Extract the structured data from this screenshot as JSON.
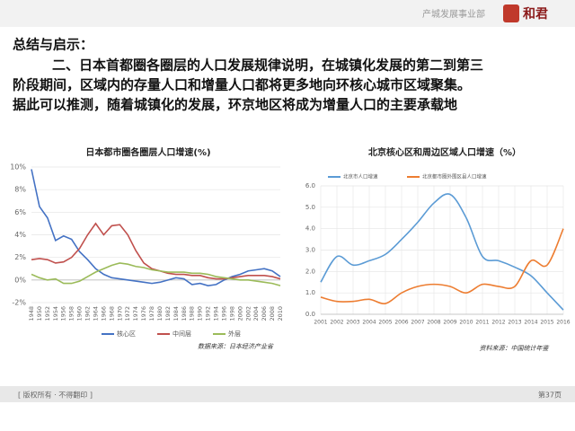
{
  "header": {
    "department": "产城发展事业部",
    "logo": "和君"
  },
  "body": {
    "heading": "总结与启示：",
    "lines": [
      "二、日本首都圈各圈层的人口发展规律说明，在城镇化发展的第二到第三",
      "阶段期间，区域内的存量人口和增量人口都将更多地向环核心城市区域聚集。",
      "据此可以推测，随着城镇化的发展，环京地区将成为增量人口的主要承载地"
    ]
  },
  "footer": {
    "left": "[ 版权所有 · 不得翻印 ]",
    "right": "第37页"
  },
  "chart_data": [
    {
      "type": "line",
      "title": "日本都市圈各圈层人口增速(%)",
      "source": "数据来源：日本经济产业省",
      "categories": [
        "1948",
        "1950",
        "1952",
        "1954",
        "1956",
        "1958",
        "1960",
        "1962",
        "1964",
        "1966",
        "1968",
        "1970",
        "1972",
        "1974",
        "1976",
        "1978",
        "1980",
        "1982",
        "1984",
        "1986",
        "1988",
        "1990",
        "1992",
        "1994",
        "1996",
        "1998",
        "2000",
        "2002",
        "2004",
        "2006",
        "2008",
        "2010"
      ],
      "series": [
        {
          "name": "核心区",
          "color": "#4472c4",
          "values": [
            9.8,
            6.5,
            5.5,
            3.5,
            3.9,
            3.6,
            2.5,
            1.8,
            1.0,
            0.5,
            0.2,
            0.1,
            0.0,
            -0.1,
            -0.2,
            -0.3,
            -0.2,
            0.0,
            0.2,
            0.1,
            -0.4,
            -0.3,
            -0.5,
            -0.4,
            0.0,
            0.3,
            0.5,
            0.8,
            0.9,
            1.0,
            0.8,
            0.3
          ]
        },
        {
          "name": "中间层",
          "color": "#c0504d",
          "values": [
            1.8,
            1.9,
            1.8,
            1.5,
            1.6,
            2.0,
            2.8,
            4.0,
            5.0,
            4.0,
            4.8,
            4.9,
            4.0,
            2.6,
            1.5,
            1.0,
            0.8,
            0.6,
            0.5,
            0.5,
            0.4,
            0.4,
            0.2,
            0.1,
            0.1,
            0.2,
            0.3,
            0.4,
            0.4,
            0.4,
            0.3,
            0.1
          ]
        },
        {
          "name": "外层",
          "color": "#9bbb59",
          "values": [
            0.5,
            0.2,
            0.0,
            0.1,
            -0.3,
            -0.3,
            -0.1,
            0.3,
            0.7,
            1.0,
            1.3,
            1.5,
            1.4,
            1.2,
            1.1,
            0.9,
            0.8,
            0.7,
            0.7,
            0.7,
            0.6,
            0.6,
            0.5,
            0.3,
            0.2,
            0.1,
            0.0,
            0.0,
            -0.1,
            -0.2,
            -0.3,
            -0.5
          ]
        }
      ],
      "ylim": [
        -2,
        10
      ],
      "yticks": [
        {
          "value": -2,
          "label": "-2%"
        },
        {
          "value": 0,
          "label": "0%"
        },
        {
          "value": 2,
          "label": "2%"
        },
        {
          "value": 4,
          "label": "4%"
        },
        {
          "value": 6,
          "label": "6%"
        },
        {
          "value": 8,
          "label": "8%"
        },
        {
          "value": 10,
          "label": "10%"
        }
      ],
      "grid": true,
      "smooth": false,
      "legend": "bottom"
    },
    {
      "type": "line",
      "title": "北京核心区和周边区域人口增速（%）",
      "source": "资料来源：中国统计年鉴",
      "categories": [
        "2001",
        "2002",
        "2003",
        "2004",
        "2005",
        "2006",
        "2007",
        "2008",
        "2009",
        "2010",
        "2011",
        "2012",
        "2013",
        "2014",
        "2015",
        "2016"
      ],
      "series": [
        {
          "name": "北京市人口增速",
          "color": "#5b9bd5",
          "values": [
            1.5,
            2.7,
            2.3,
            2.5,
            2.8,
            3.5,
            4.3,
            5.2,
            5.6,
            4.5,
            2.7,
            2.5,
            2.2,
            1.8,
            1.0,
            0.2
          ]
        },
        {
          "name": "北京都市圈外围区县人口增速",
          "color": "#ed7d31",
          "values": [
            0.8,
            0.6,
            0.6,
            0.7,
            0.5,
            1.0,
            1.3,
            1.4,
            1.3,
            1.0,
            1.4,
            1.3,
            1.3,
            2.5,
            2.3,
            4.0
          ]
        }
      ],
      "ylim": [
        0,
        6
      ],
      "yticks": [
        {
          "value": 0,
          "label": "0.0"
        },
        {
          "value": 1,
          "label": "1.0"
        },
        {
          "value": 2,
          "label": "2.0"
        },
        {
          "value": 3,
          "label": "3.0"
        },
        {
          "value": 4,
          "label": "4.0"
        },
        {
          "value": 5,
          "label": "5.0"
        },
        {
          "value": 6,
          "label": "6.0"
        }
      ],
      "grid": true,
      "smooth": true,
      "legend": "top"
    }
  ]
}
